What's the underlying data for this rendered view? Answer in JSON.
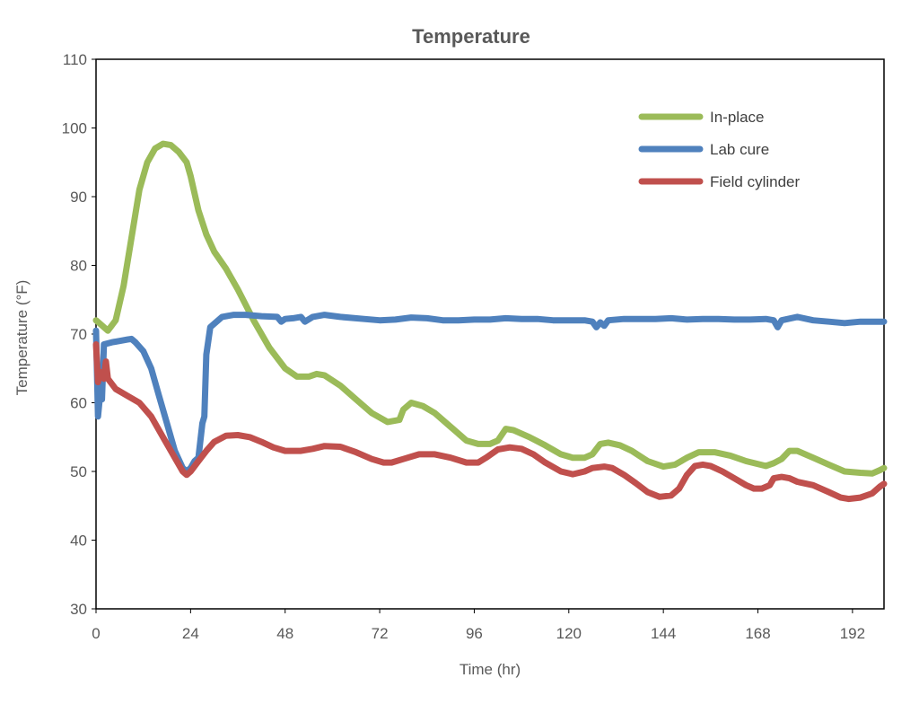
{
  "chart_data": {
    "type": "line",
    "title": "Temperature",
    "xlabel": "Time (hr)",
    "ylabel": "Temperature (°F)",
    "xlim": [
      0,
      200
    ],
    "ylim": [
      30,
      110
    ],
    "xticks": [
      0,
      24,
      48,
      72,
      96,
      120,
      144,
      168,
      192
    ],
    "yticks": [
      30,
      40,
      50,
      60,
      70,
      80,
      90,
      100,
      110
    ],
    "grid": false,
    "legend_position": "top-right",
    "series": [
      {
        "name": "In-place",
        "color": "#9BBB59",
        "points": [
          [
            0,
            72
          ],
          [
            1,
            71.5
          ],
          [
            3,
            70.5
          ],
          [
            5,
            72
          ],
          [
            7,
            77
          ],
          [
            9,
            84
          ],
          [
            11,
            91
          ],
          [
            13,
            95
          ],
          [
            15,
            97
          ],
          [
            17,
            97.7
          ],
          [
            19,
            97.5
          ],
          [
            21,
            96.5
          ],
          [
            23,
            95
          ],
          [
            24,
            93
          ],
          [
            26,
            88
          ],
          [
            28,
            84.5
          ],
          [
            30,
            82
          ],
          [
            33,
            79.5
          ],
          [
            36,
            76.5
          ],
          [
            40,
            72
          ],
          [
            44,
            68
          ],
          [
            48,
            65
          ],
          [
            51,
            63.8
          ],
          [
            54,
            63.8
          ],
          [
            56,
            64.2
          ],
          [
            58,
            64
          ],
          [
            62,
            62.5
          ],
          [
            66,
            60.5
          ],
          [
            70,
            58.5
          ],
          [
            74,
            57.2
          ],
          [
            77,
            57.5
          ],
          [
            78,
            59
          ],
          [
            80,
            60
          ],
          [
            83,
            59.5
          ],
          [
            86,
            58.5
          ],
          [
            90,
            56.5
          ],
          [
            94,
            54.5
          ],
          [
            97,
            54
          ],
          [
            100,
            54
          ],
          [
            102,
            54.5
          ],
          [
            104,
            56.2
          ],
          [
            106,
            56
          ],
          [
            110,
            55
          ],
          [
            114,
            53.8
          ],
          [
            118,
            52.5
          ],
          [
            121,
            52
          ],
          [
            124,
            52
          ],
          [
            126,
            52.5
          ],
          [
            128,
            54
          ],
          [
            130,
            54.2
          ],
          [
            133,
            53.8
          ],
          [
            136,
            53
          ],
          [
            140,
            51.5
          ],
          [
            144,
            50.7
          ],
          [
            147,
            51
          ],
          [
            150,
            52
          ],
          [
            153,
            52.8
          ],
          [
            157,
            52.8
          ],
          [
            161,
            52.3
          ],
          [
            165,
            51.5
          ],
          [
            170,
            50.8
          ],
          [
            172,
            51.2
          ],
          [
            174,
            51.8
          ],
          [
            176,
            53
          ],
          [
            178,
            53
          ],
          [
            182,
            52
          ],
          [
            186,
            51
          ],
          [
            190,
            50
          ],
          [
            194,
            49.8
          ],
          [
            197,
            49.7
          ],
          [
            199,
            50.2
          ],
          [
            201,
            50.5
          ]
        ]
      },
      {
        "name": "Lab cure",
        "color": "#4F81BD",
        "points": [
          [
            0,
            70.5
          ],
          [
            0.5,
            58
          ],
          [
            1,
            61
          ],
          [
            1.5,
            60.5
          ],
          [
            2,
            68.5
          ],
          [
            4,
            68.8
          ],
          [
            6,
            69
          ],
          [
            8,
            69.2
          ],
          [
            9,
            69.3
          ],
          [
            10,
            68.8
          ],
          [
            12,
            67.5
          ],
          [
            14,
            65
          ],
          [
            16,
            61
          ],
          [
            18,
            57
          ],
          [
            20,
            53
          ],
          [
            22,
            50.5
          ],
          [
            23,
            50
          ],
          [
            24,
            50.5
          ],
          [
            25,
            51.5
          ],
          [
            26,
            52
          ],
          [
            27,
            57
          ],
          [
            27.5,
            58
          ],
          [
            28,
            67
          ],
          [
            29,
            71
          ],
          [
            30,
            71.5
          ],
          [
            32,
            72.5
          ],
          [
            35,
            72.8
          ],
          [
            38,
            72.8
          ],
          [
            42,
            72.6
          ],
          [
            46,
            72.5
          ],
          [
            47,
            71.8
          ],
          [
            48,
            72.2
          ],
          [
            50,
            72.3
          ],
          [
            52,
            72.5
          ],
          [
            53,
            71.8
          ],
          [
            55,
            72.5
          ],
          [
            58,
            72.8
          ],
          [
            62,
            72.5
          ],
          [
            68,
            72.2
          ],
          [
            72,
            72
          ],
          [
            76,
            72.1
          ],
          [
            80,
            72.4
          ],
          [
            84,
            72.3
          ],
          [
            88,
            72
          ],
          [
            92,
            72
          ],
          [
            96,
            72.1
          ],
          [
            100,
            72.1
          ],
          [
            104,
            72.3
          ],
          [
            108,
            72.2
          ],
          [
            112,
            72.2
          ],
          [
            116,
            72
          ],
          [
            120,
            72
          ],
          [
            124,
            72
          ],
          [
            126,
            71.8
          ],
          [
            127,
            71
          ],
          [
            128,
            71.7
          ],
          [
            129,
            71.2
          ],
          [
            130,
            72
          ],
          [
            134,
            72.2
          ],
          [
            138,
            72.2
          ],
          [
            142,
            72.2
          ],
          [
            146,
            72.3
          ],
          [
            150,
            72.1
          ],
          [
            154,
            72.2
          ],
          [
            158,
            72.2
          ],
          [
            162,
            72.1
          ],
          [
            166,
            72.1
          ],
          [
            170,
            72.2
          ],
          [
            172,
            72
          ],
          [
            173,
            71
          ],
          [
            174,
            72
          ],
          [
            178,
            72.5
          ],
          [
            182,
            72
          ],
          [
            186,
            71.8
          ],
          [
            190,
            71.6
          ],
          [
            194,
            71.8
          ],
          [
            198,
            71.8
          ],
          [
            201,
            71.8
          ]
        ]
      },
      {
        "name": "Field cylinder",
        "color": "#C0504D",
        "points": [
          [
            0,
            68.5
          ],
          [
            0.5,
            63
          ],
          [
            1,
            64.5
          ],
          [
            2,
            63.5
          ],
          [
            2.5,
            66
          ],
          [
            3,
            63.5
          ],
          [
            5,
            62
          ],
          [
            8,
            61
          ],
          [
            11,
            60
          ],
          [
            14,
            58
          ],
          [
            17,
            55
          ],
          [
            20,
            52
          ],
          [
            22,
            50
          ],
          [
            23,
            49.5
          ],
          [
            24,
            50
          ],
          [
            26,
            51.5
          ],
          [
            28,
            53
          ],
          [
            30,
            54.3
          ],
          [
            33,
            55.2
          ],
          [
            36,
            55.3
          ],
          [
            39,
            55
          ],
          [
            42,
            54.3
          ],
          [
            45,
            53.5
          ],
          [
            48,
            53
          ],
          [
            52,
            53
          ],
          [
            55,
            53.3
          ],
          [
            58,
            53.7
          ],
          [
            62,
            53.6
          ],
          [
            66,
            52.8
          ],
          [
            70,
            51.8
          ],
          [
            73,
            51.3
          ],
          [
            75,
            51.3
          ],
          [
            78,
            51.8
          ],
          [
            82,
            52.5
          ],
          [
            86,
            52.5
          ],
          [
            90,
            52
          ],
          [
            94,
            51.3
          ],
          [
            97,
            51.3
          ],
          [
            99,
            52
          ],
          [
            102,
            53.2
          ],
          [
            105,
            53.5
          ],
          [
            108,
            53.3
          ],
          [
            111,
            52.5
          ],
          [
            114,
            51.3
          ],
          [
            118,
            50
          ],
          [
            121,
            49.6
          ],
          [
            124,
            50
          ],
          [
            126,
            50.5
          ],
          [
            129,
            50.7
          ],
          [
            131,
            50.5
          ],
          [
            134,
            49.5
          ],
          [
            137,
            48.3
          ],
          [
            140,
            47
          ],
          [
            143,
            46.3
          ],
          [
            146,
            46.5
          ],
          [
            148,
            47.5
          ],
          [
            150,
            49.5
          ],
          [
            152,
            50.8
          ],
          [
            154,
            51
          ],
          [
            156,
            50.8
          ],
          [
            159,
            50
          ],
          [
            162,
            49
          ],
          [
            165,
            48
          ],
          [
            167,
            47.5
          ],
          [
            169,
            47.5
          ],
          [
            171,
            48
          ],
          [
            172,
            49
          ],
          [
            174,
            49.2
          ],
          [
            176,
            49
          ],
          [
            178,
            48.5
          ],
          [
            182,
            48
          ],
          [
            186,
            47
          ],
          [
            189,
            46.2
          ],
          [
            191,
            46
          ],
          [
            194,
            46.2
          ],
          [
            197,
            46.8
          ],
          [
            199,
            47.8
          ],
          [
            201,
            48.2
          ]
        ]
      }
    ]
  }
}
